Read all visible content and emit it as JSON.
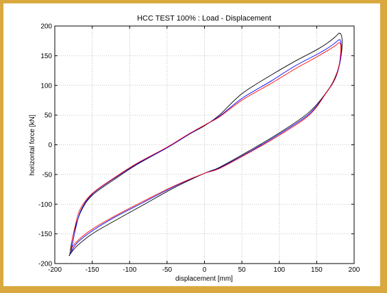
{
  "chart_data": {
    "type": "line",
    "title": "HCC TEST 100% : Load - Displacement",
    "xlabel": "displacement [mm]",
    "ylabel": "horizontal force [kN]",
    "xlim": [
      -200,
      200
    ],
    "ylim": [
      -200,
      200
    ],
    "xticks": [
      -200,
      -150,
      -100,
      -50,
      0,
      50,
      100,
      150,
      200
    ],
    "yticks": [
      -200,
      -150,
      -100,
      -50,
      0,
      50,
      100,
      150,
      200
    ],
    "grid": true,
    "series": [
      {
        "color": "#000000",
        "x": [
          -180,
          -178,
          -174,
          -165,
          -150,
          -120,
          -90,
          -50,
          -20,
          0,
          20,
          50,
          90,
          120,
          150,
          165,
          175,
          180,
          183,
          184,
          182,
          176,
          165,
          140,
          100,
          60,
          20,
          0,
          -40,
          -80,
          -120,
          -150,
          -170,
          -180
        ],
        "y": [
          -185,
          -168,
          -145,
          -112,
          -85,
          -58,
          -33,
          -5,
          18,
          32,
          50,
          86,
          118,
          140,
          160,
          172,
          182,
          188,
          184,
          170,
          145,
          118,
          92,
          55,
          20,
          -10,
          -38,
          -48,
          -72,
          -100,
          -128,
          -150,
          -170,
          -185
        ]
      },
      {
        "color": "#0000ff",
        "x": [
          -178,
          -176,
          -172,
          -165,
          -150,
          -120,
          -90,
          -50,
          -20,
          0,
          20,
          50,
          90,
          120,
          150,
          165,
          175,
          180,
          182,
          183,
          181,
          175,
          163,
          140,
          100,
          60,
          20,
          0,
          -40,
          -80,
          -120,
          -150,
          -170,
          -178
        ],
        "y": [
          -180,
          -165,
          -140,
          -110,
          -83,
          -56,
          -32,
          -5,
          18,
          33,
          48,
          78,
          108,
          132,
          152,
          163,
          172,
          177,
          174,
          160,
          138,
          112,
          88,
          52,
          18,
          -12,
          -39,
          -48,
          -70,
          -96,
          -122,
          -145,
          -165,
          -180
        ]
      },
      {
        "color": "#ff0000",
        "x": [
          -178,
          -177,
          -173,
          -166,
          -150,
          -120,
          -90,
          -50,
          -20,
          0,
          20,
          50,
          90,
          120,
          150,
          165,
          175,
          180,
          182,
          182,
          180,
          174,
          162,
          140,
          100,
          60,
          20,
          0,
          -40,
          -80,
          -120,
          -150,
          -170,
          -178
        ],
        "y": [
          -175,
          -162,
          -138,
          -108,
          -82,
          -55,
          -31,
          -4,
          19,
          33,
          47,
          75,
          104,
          127,
          148,
          159,
          167,
          172,
          168,
          155,
          135,
          110,
          86,
          50,
          16,
          -13,
          -40,
          -48,
          -69,
          -94,
          -120,
          -142,
          -162,
          -175
        ]
      }
    ]
  }
}
